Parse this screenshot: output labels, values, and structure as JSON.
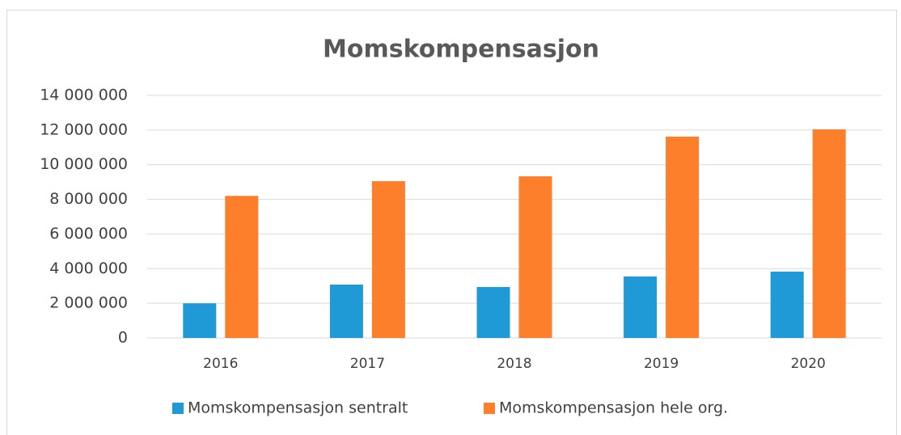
{
  "chart_data": {
    "type": "bar",
    "title": "Momskompensasjon",
    "categories": [
      "2016",
      "2017",
      "2018",
      "2019",
      "2020"
    ],
    "series": [
      {
        "name": "Momskompensasjon sentralt",
        "color": "#1f9ad6",
        "values": [
          2000000,
          3080000,
          2940000,
          3550000,
          3830000
        ]
      },
      {
        "name": "Momskompensasjon hele org.",
        "color": "#fd7f2b",
        "values": [
          8200000,
          9050000,
          9330000,
          11620000,
          12040000
        ]
      }
    ],
    "ylim": [
      0,
      14000000
    ],
    "yticks": [
      0,
      {
        "value": 2000000,
        "label": "2 000 000"
      },
      {
        "value": 4000000,
        "label": "4 000 000"
      },
      {
        "value": 6000000,
        "label": "6 000 000"
      },
      {
        "value": 8000000,
        "label": "8 000 000"
      },
      {
        "value": 10000000,
        "label": "10 000 000"
      },
      {
        "value": 12000000,
        "label": "12 000 000"
      },
      {
        "value": 14000000,
        "label": "14 000 000"
      }
    ],
    "grid": true,
    "legend": "bottom"
  }
}
